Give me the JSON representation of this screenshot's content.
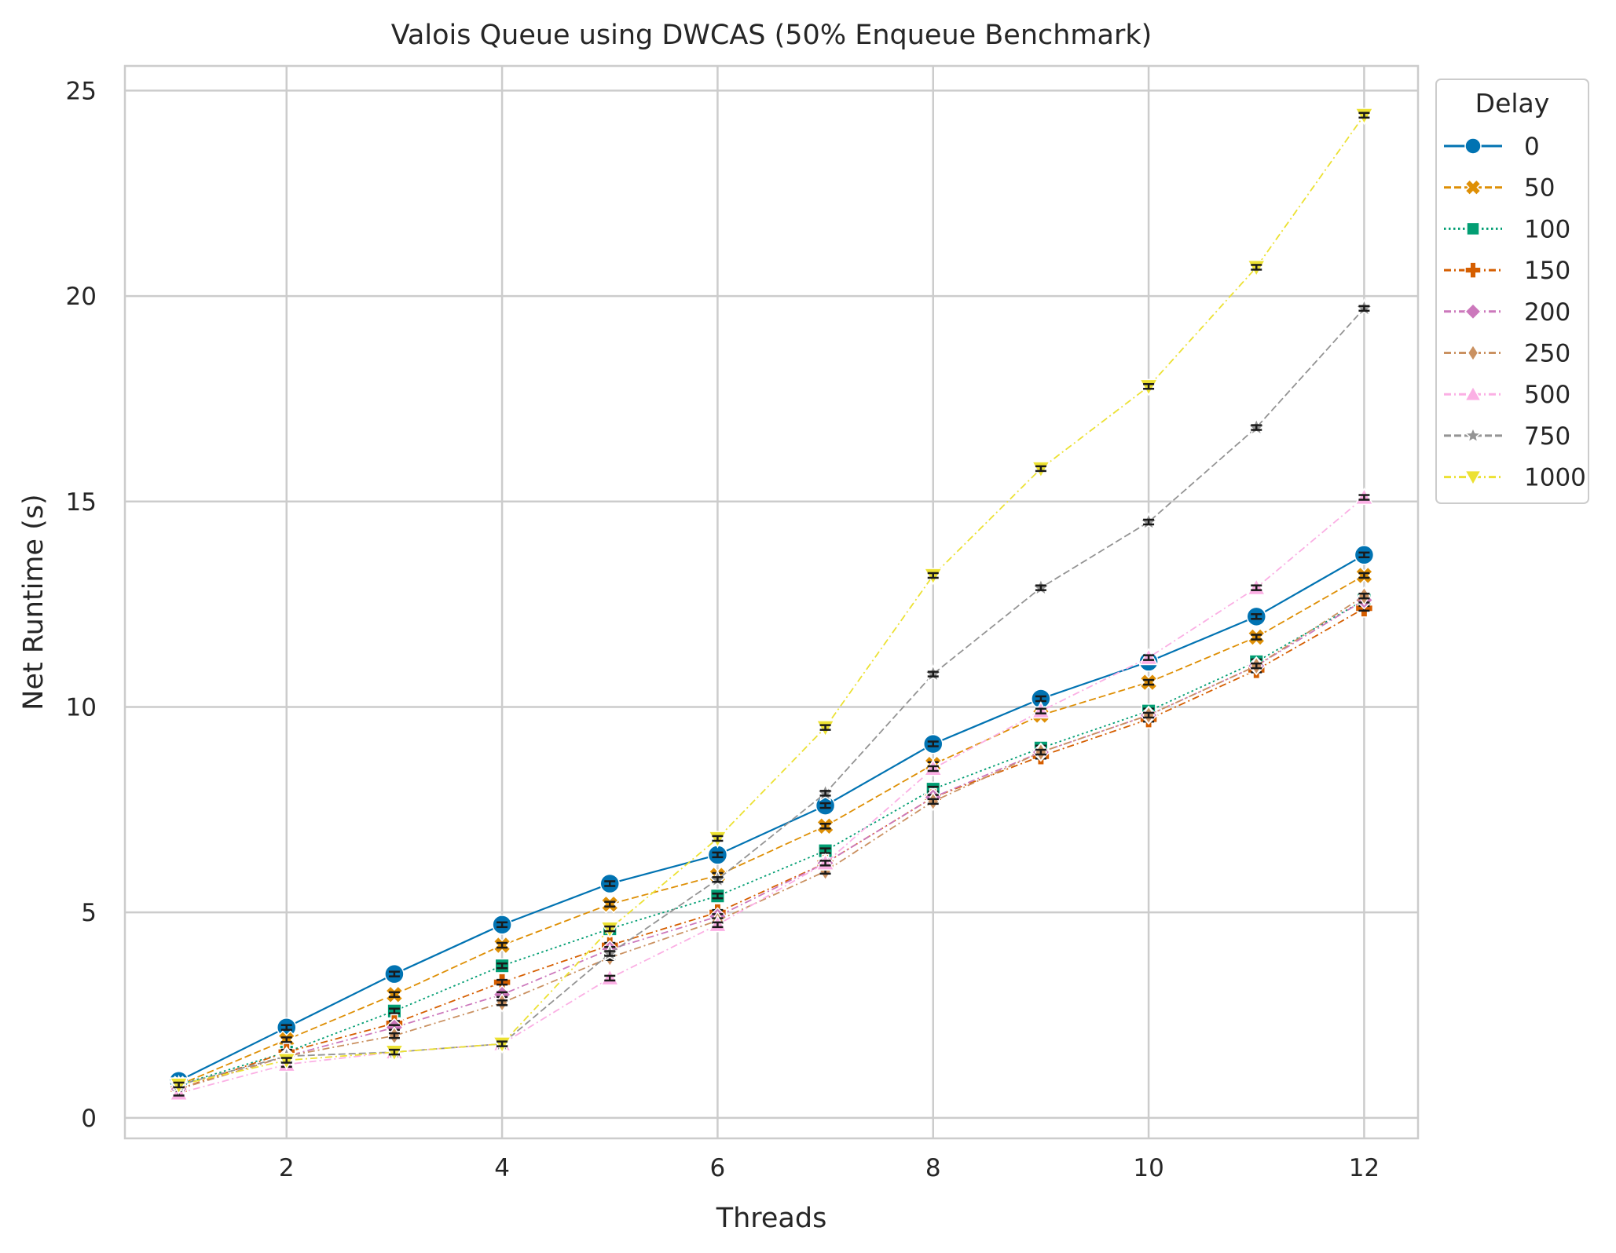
{
  "chart_data": {
    "type": "line",
    "title": "Valois Queue using DWCAS (50% Enqueue Benchmark)",
    "xlabel": "Threads",
    "ylabel": "Net Runtime (s)",
    "xlim": [
      0.5,
      12.5
    ],
    "ylim": [
      -0.5,
      25.6
    ],
    "xticks": [
      2,
      4,
      6,
      8,
      10,
      12
    ],
    "yticks": [
      0,
      5,
      10,
      15,
      20,
      25
    ],
    "grid": true,
    "legend_position": "outside-right-top",
    "legend_title": "Delay",
    "x": [
      1,
      2,
      3,
      4,
      5,
      6,
      7,
      8,
      9,
      10,
      11,
      12
    ],
    "series": [
      {
        "name": "0",
        "color": "#0173b2",
        "marker": "circle",
        "dash": "solid",
        "values": [
          0.9,
          2.2,
          3.5,
          4.7,
          5.7,
          6.4,
          7.6,
          9.1,
          10.2,
          11.1,
          12.2,
          13.7
        ]
      },
      {
        "name": "50",
        "color": "#de8f05",
        "marker": "x-cross",
        "dash": "dashed",
        "values": [
          0.8,
          1.9,
          3.0,
          4.2,
          5.2,
          5.9,
          7.1,
          8.6,
          9.8,
          10.6,
          11.7,
          13.2
        ]
      },
      {
        "name": "100",
        "color": "#029e73",
        "marker": "square",
        "dash": "dotted",
        "values": [
          0.8,
          1.6,
          2.6,
          3.7,
          4.6,
          5.4,
          6.5,
          8.0,
          9.0,
          9.9,
          11.1,
          12.6
        ]
      },
      {
        "name": "150",
        "color": "#d55e00",
        "marker": "plus",
        "dash": "dashdot",
        "values": [
          0.7,
          1.6,
          2.3,
          3.3,
          4.2,
          5.0,
          6.2,
          7.8,
          8.8,
          9.7,
          10.9,
          12.4
        ]
      },
      {
        "name": "200",
        "color": "#cc78bc",
        "marker": "diamond",
        "dash": "dashdot",
        "values": [
          0.7,
          1.5,
          2.2,
          3.0,
          4.1,
          4.9,
          6.2,
          7.8,
          8.9,
          9.8,
          11.0,
          12.6
        ]
      },
      {
        "name": "250",
        "color": "#ca9161",
        "marker": "thin-diamond",
        "dash": "dashdot",
        "values": [
          0.7,
          1.5,
          2.0,
          2.8,
          3.9,
          4.8,
          6.0,
          7.7,
          8.9,
          9.8,
          11.0,
          12.7
        ]
      },
      {
        "name": "500",
        "color": "#fbafe4",
        "marker": "triangle-up",
        "dash": "dashdot",
        "values": [
          0.6,
          1.3,
          1.6,
          1.8,
          3.4,
          4.7,
          6.2,
          8.5,
          9.9,
          11.2,
          12.9,
          15.1
        ]
      },
      {
        "name": "750",
        "color": "#949494",
        "marker": "star",
        "dash": "dashed",
        "values": [
          0.8,
          1.5,
          1.6,
          1.8,
          4.0,
          5.8,
          7.9,
          10.8,
          12.9,
          14.5,
          16.8,
          19.7
        ]
      },
      {
        "name": "1000",
        "color": "#ece133",
        "marker": "triangle-down",
        "dash": "dashdot",
        "values": [
          0.8,
          1.4,
          1.6,
          1.8,
          4.6,
          6.8,
          9.5,
          13.2,
          15.8,
          17.8,
          20.7,
          24.4
        ]
      }
    ]
  }
}
